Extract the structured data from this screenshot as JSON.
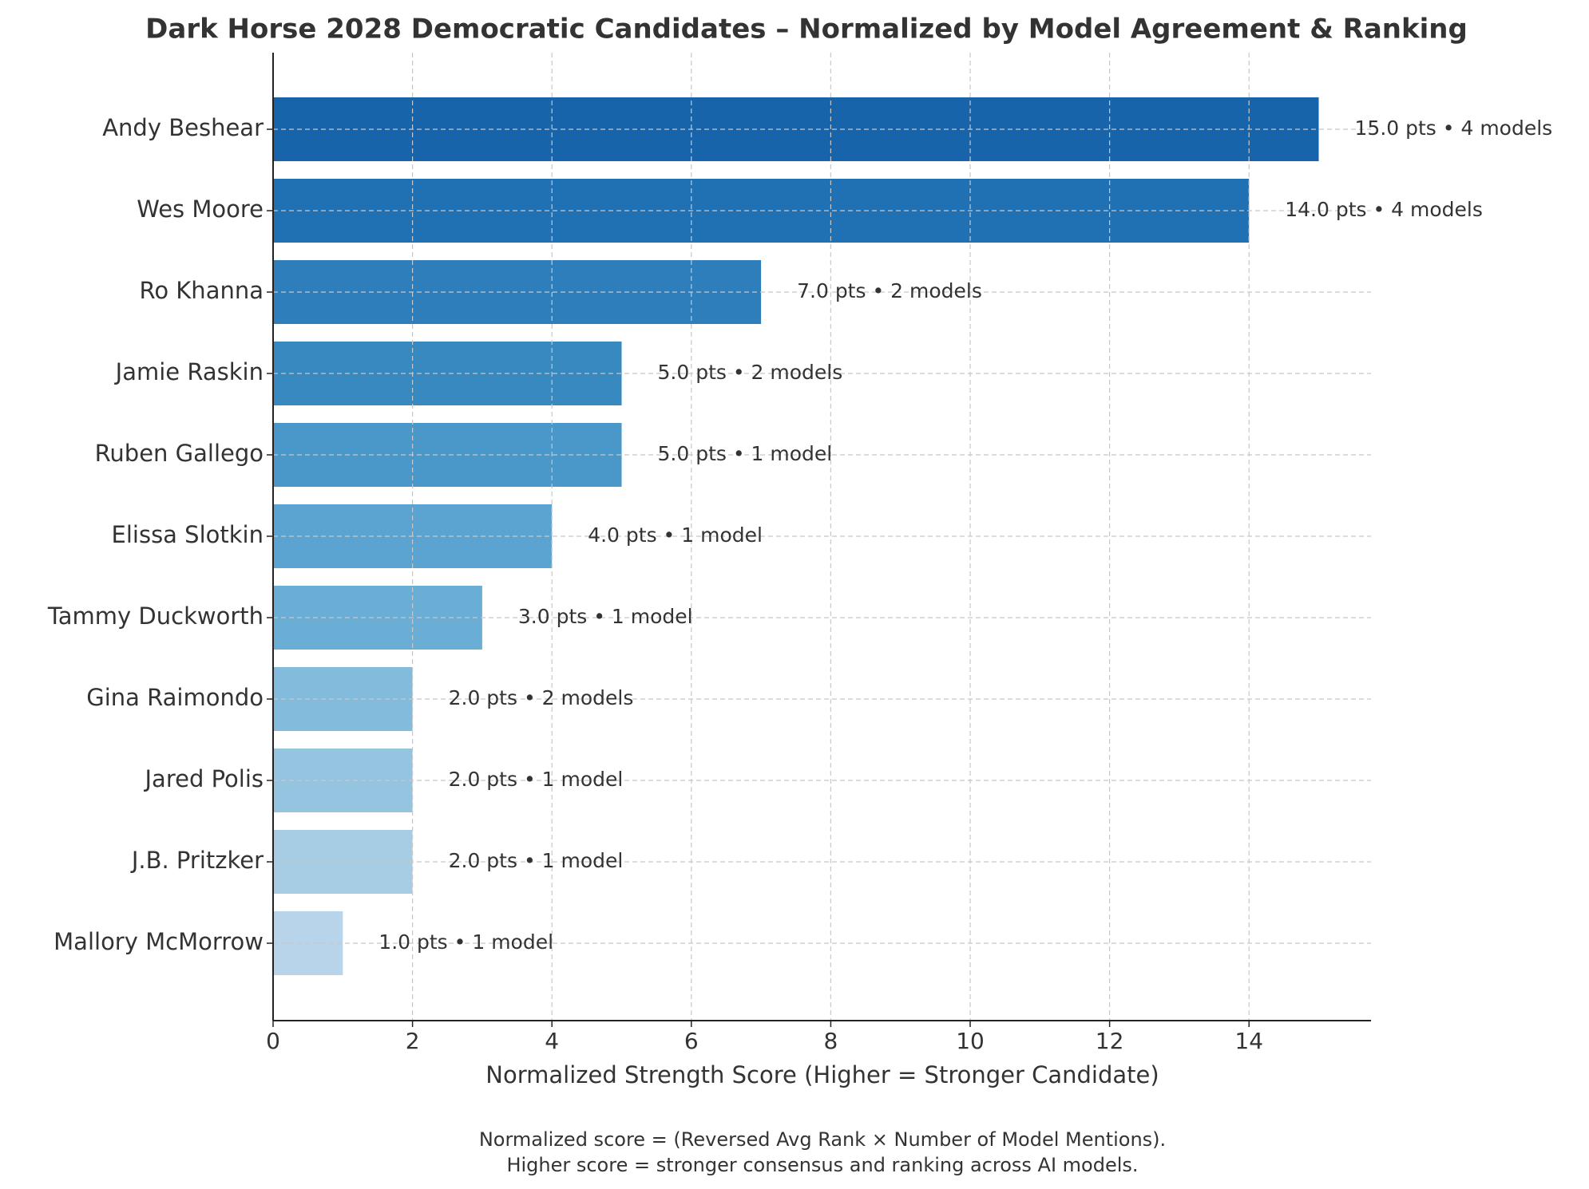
{
  "chart_data": {
    "type": "barh",
    "title": "Dark Horse 2028 Democratic Candidates – Normalized by Model Agreement & Ranking",
    "x_label": "Normalized Strength Score (Higher = Stronger Candidate)",
    "footnote": [
      "Normalized score = (Reversed Avg Rank × Number of Model Mentions).",
      "Higher score = stronger consensus and ranking across AI models."
    ],
    "categories": [
      "Andy Beshear",
      "Wes Moore",
      "Ro Khanna",
      "Jamie Raskin",
      "Ruben Gallego",
      "Elissa Slotkin",
      "Tammy Duckworth",
      "Gina Raimondo",
      "Jared Polis",
      "J.B. Pritzker",
      "Mallory McMorrow"
    ],
    "values": [
      15,
      14,
      7,
      5,
      5,
      4,
      3,
      2,
      2,
      2,
      1
    ],
    "value_labels": [
      "15.0 pts • 4 models",
      "14.0 pts • 4 models",
      "7.0 pts • 2 models",
      "5.0 pts • 2 models",
      "5.0 pts • 1 model",
      "4.0 pts • 1 model",
      "3.0 pts • 1 model",
      "2.0 pts • 2 models",
      "2.0 pts • 1 model",
      "2.0 pts • 1 model",
      "1.0 pts • 1 model"
    ],
    "colors": [
      "#1764ab",
      "#2070b4",
      "#2e7ebc",
      "#3989c1",
      "#4a98c9",
      "#5ba3d0",
      "#6aaed6",
      "#82bbdb",
      "#94c4df",
      "#a6cde4",
      "#b7d4ea"
    ],
    "xlim": [
      0,
      15.75
    ],
    "xticks": [
      0,
      2,
      4,
      6,
      8,
      10,
      12,
      14
    ],
    "grid": true
  }
}
